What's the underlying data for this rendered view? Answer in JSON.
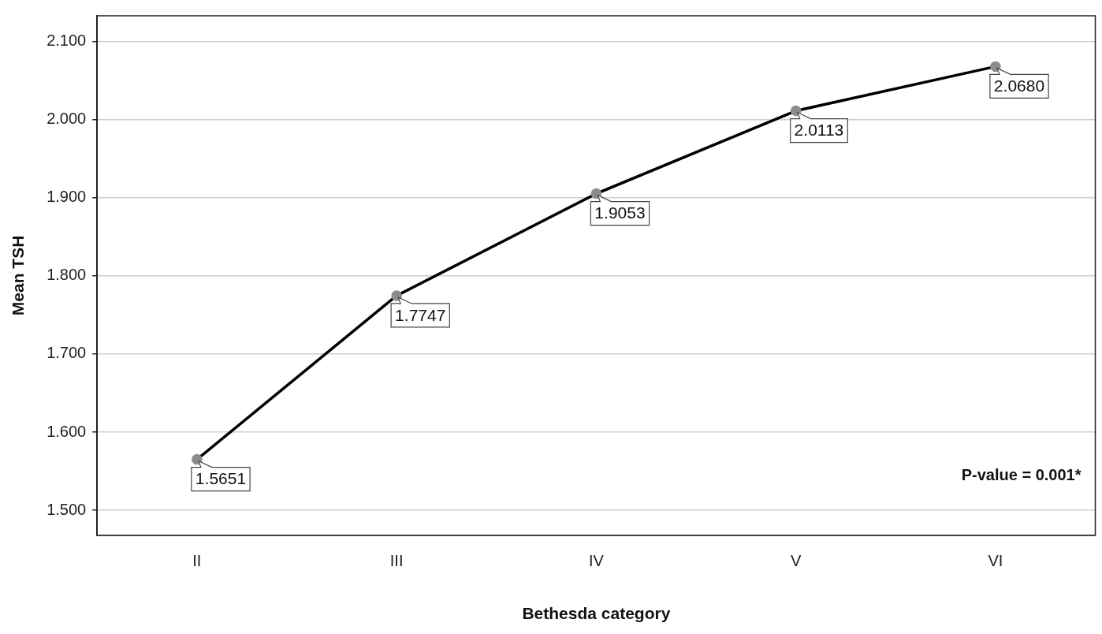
{
  "chart_data": {
    "type": "line",
    "xlabel": "Bethesda category",
    "ylabel": "Mean TSH",
    "categories": [
      "II",
      "III",
      "IV",
      "V",
      "VI"
    ],
    "series": [
      {
        "color": "#000000",
        "values": [
          1.5651,
          1.7747,
          1.9053,
          2.0113,
          2.068
        ],
        "value_labels": [
          "1.5651",
          "1.7747",
          "1.9053",
          "2.0113",
          "2.0680"
        ]
      }
    ],
    "ylim": [
      1.468,
      2.133
    ],
    "yticks": [
      {
        "value": 1.5,
        "label": "1.500"
      },
      {
        "value": 1.6,
        "label": "1.600"
      },
      {
        "value": 1.7,
        "label": "1.700"
      },
      {
        "value": 1.8,
        "label": "1.800"
      },
      {
        "value": 1.9,
        "label": "1.900"
      },
      {
        "value": 2.0,
        "label": "2.000"
      },
      {
        "value": 2.1,
        "label": "2.100"
      }
    ],
    "grid": "y",
    "legend": false,
    "marker": "circle",
    "line_style": "solid",
    "annotations": [
      "P-value = 0.001*"
    ]
  }
}
